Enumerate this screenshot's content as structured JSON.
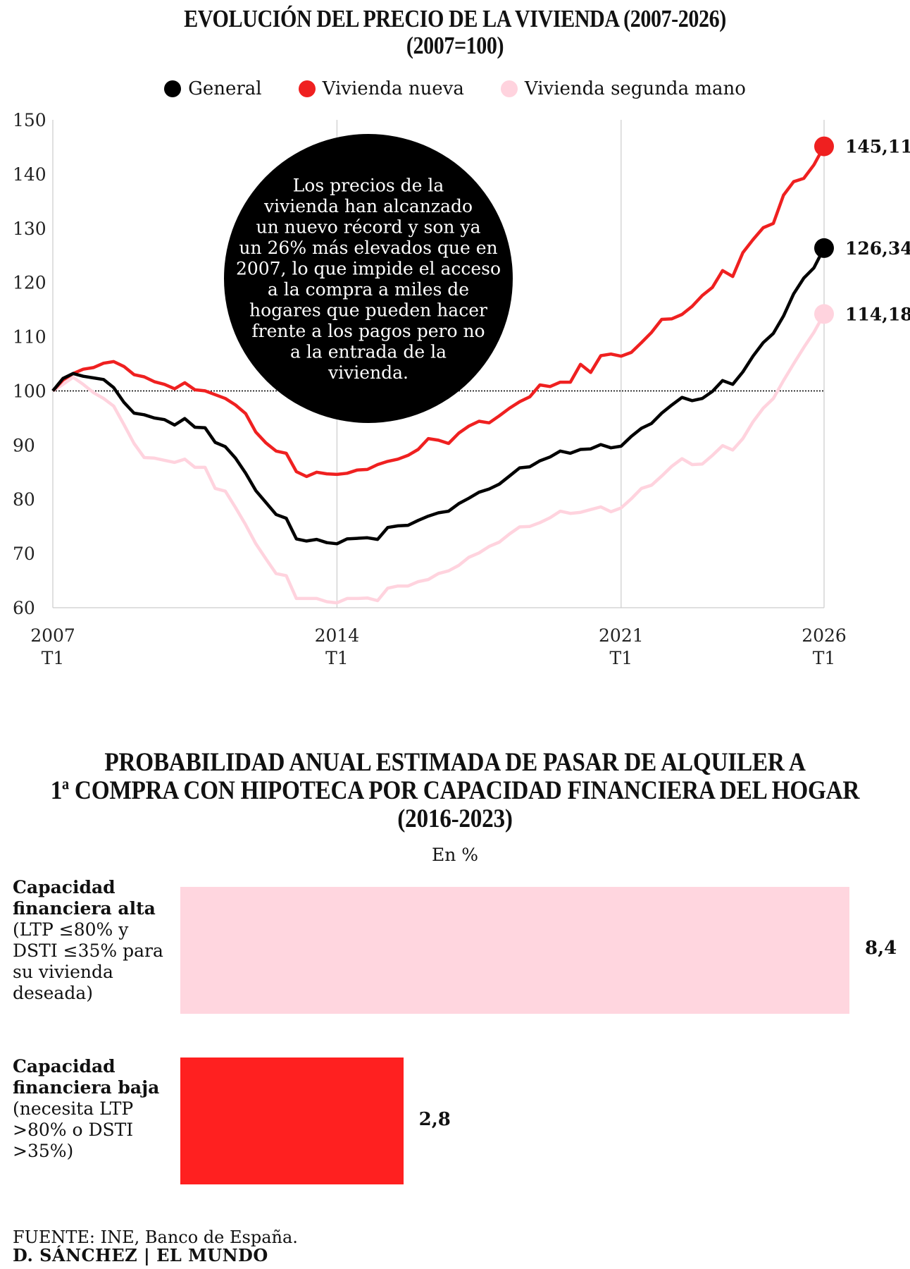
{
  "chart1": {
    "title_line1": "EVOLUCIÓN DEL PRECIO DE LA VIVIENDA (2007-2026)",
    "title_line2": "(2007=100)",
    "annotation": "Los precios de la vivienda han alcanzado un nuevo récord y son ya un 26% más elevados que en 2007, lo que impide el acceso a la compra a miles de hogares que pueden hacer frente a  los pagos pero no a la entrada de la vivienda.",
    "annotation_lines": [
      "Los precios de la",
      "vivienda han alcanzado",
      "un nuevo récord y son ya",
      "un 26% más elevados que en",
      "2007, lo que impide el acceso",
      "a la compra a miles de",
      "hogares que pueden hacer",
      "frente a  los pagos pero no",
      "a la entrada de la",
      "vivienda."
    ]
  },
  "chart2": {
    "title_line1": "PROBABILIDAD ANUAL ESTIMADA DE PASAR DE ALQUILER A",
    "title_line2": "1ª COMPRA CON HIPOTECA POR CAPACIDAD FINANCIERA DEL HOGAR",
    "title_line3": "(2016-2023)",
    "unit": "En %",
    "bars": [
      {
        "label_bold": "Capacidad financiera alta",
        "label_sub": "(LTP ≤80% y DSTI ≤35% para su vivienda deseada)",
        "value": 8.4,
        "value_label": "8,4",
        "color": "#ffd6df"
      },
      {
        "label_bold": "Capacidad financiera baja",
        "label_sub": "(necesita LTP >80% o DSTI >35%)",
        "value": 2.8,
        "value_label": "2,8",
        "color": "#ff2020"
      }
    ]
  },
  "footer": {
    "source": "FUENTE: INE, Banco de España.",
    "credit": "D. SÁNCHEZ | EL MUNDO"
  },
  "chart_data": [
    {
      "type": "line",
      "title": "EVOLUCIÓN DEL PRECIO DE LA VIVIENDA (2007-2026) (2007=100)",
      "xlabel": "",
      "ylabel": "",
      "ylim": [
        60,
        150
      ],
      "yticks": [
        60,
        70,
        80,
        90,
        100,
        110,
        120,
        130,
        140,
        150
      ],
      "x_start": {
        "year": 2007,
        "quarter": 1
      },
      "xticks": [
        {
          "year": 2007,
          "quarter": 1,
          "label_top": "2007",
          "label_bottom": "T1",
          "gridline": false
        },
        {
          "year": 2014,
          "quarter": 1,
          "label_top": "2014",
          "label_bottom": "T1",
          "gridline": true
        },
        {
          "year": 2021,
          "quarter": 1,
          "label_top": "2021",
          "label_bottom": "T1",
          "gridline": true
        },
        {
          "year": 2026,
          "quarter": 1,
          "label_top": "2026",
          "label_bottom": "T1",
          "gridline": true
        }
      ],
      "reference_line": 100,
      "grid": true,
      "legend_position": "top",
      "series": [
        {
          "name": "General",
          "color": "#000000",
          "end_label": "126,34",
          "values": [
            100,
            102.3,
            103.2,
            102.7,
            102.4,
            102.1,
            100.6,
            97.9,
            95.9,
            95.6,
            95,
            94.7,
            93.7,
            94.9,
            93.3,
            93.2,
            90.5,
            89.7,
            87.6,
            84.8,
            81.6,
            79.4,
            77.2,
            76.5,
            72.7,
            72.3,
            72.6,
            72,
            71.8,
            72.7,
            72.8,
            72.9,
            72.6,
            74.8,
            75.1,
            75.2,
            76.1,
            76.9,
            77.5,
            77.8,
            79.2,
            80.2,
            81.3,
            81.9,
            82.8,
            84.3,
            85.8,
            86,
            87.1,
            87.8,
            88.9,
            88.5,
            89.2,
            89.3,
            90.1,
            89.5,
            89.8,
            91.6,
            93.1,
            94,
            95.9,
            97.4,
            98.8,
            98.2,
            98.6,
            99.9,
            101.9,
            101.2,
            103.5,
            106.4,
            108.9,
            110.6,
            113.8,
            117.9,
            120.8,
            122.7,
            126.34
          ]
        },
        {
          "name": "Vivienda nueva",
          "color": "#ef2020",
          "end_label": "145,11",
          "values": [
            100,
            102,
            103.2,
            104,
            104.3,
            105.1,
            105.4,
            104.5,
            103,
            102.6,
            101.7,
            101.2,
            100.4,
            101.5,
            100.2,
            100,
            99.3,
            98.6,
            97.4,
            95.8,
            92.4,
            90.4,
            88.9,
            88.5,
            85.1,
            84.2,
            85,
            84.7,
            84.6,
            84.8,
            85.4,
            85.5,
            86.4,
            87,
            87.4,
            88.1,
            89.2,
            91.2,
            90.9,
            90.3,
            92.2,
            93.5,
            94.4,
            94.1,
            95.4,
            96.8,
            98,
            98.9,
            101.1,
            100.8,
            101.6,
            101.6,
            104.9,
            103.4,
            106.5,
            106.8,
            106.4,
            107.1,
            108.9,
            110.8,
            113.2,
            113.3,
            114.1,
            115.6,
            117.6,
            119.1,
            122.2,
            121.1,
            125.5,
            127.9,
            130.1,
            130.9,
            136.1,
            138.6,
            139.2,
            141.7,
            145.11
          ]
        },
        {
          "name": "Vivienda segunda mano",
          "color": "#ffd3de",
          "end_label": "114,18",
          "values": [
            100,
            101.2,
            102.5,
            101.2,
            99.7,
            98.6,
            97.2,
            93.8,
            90.3,
            87.7,
            87.6,
            87.2,
            86.8,
            87.4,
            85.9,
            85.9,
            82,
            81.5,
            78.5,
            75.3,
            71.8,
            69,
            66.3,
            65.9,
            61.7,
            61.7,
            61.7,
            61.1,
            60.9,
            61.7,
            61.7,
            61.8,
            61.3,
            63.6,
            64,
            64,
            64.8,
            65.2,
            66.3,
            66.8,
            67.8,
            69.3,
            70.1,
            71.3,
            72.1,
            73.6,
            74.9,
            75,
            75.7,
            76.6,
            77.8,
            77.4,
            77.6,
            78.1,
            78.6,
            77.7,
            78.4,
            80.1,
            82,
            82.6,
            84.3,
            86.1,
            87.5,
            86.4,
            86.5,
            88.1,
            89.9,
            89.1,
            91.2,
            94.3,
            96.8,
            98.6,
            101.9,
            105,
            108,
            110.8,
            114.18
          ]
        }
      ]
    },
    {
      "type": "bar",
      "title": "PROBABILIDAD ANUAL ESTIMADA DE PASAR DE ALQUILER A 1ª COMPRA CON HIPOTECA POR CAPACIDAD FINANCIERA DEL HOGAR (2016-2023)",
      "ylabel": "En %",
      "categories": [
        "Capacidad financiera alta",
        "Capacidad financiera baja"
      ],
      "values": [
        8.4,
        2.8
      ],
      "value_labels": [
        "8,4",
        "2,8"
      ],
      "orientation": "horizontal"
    }
  ]
}
